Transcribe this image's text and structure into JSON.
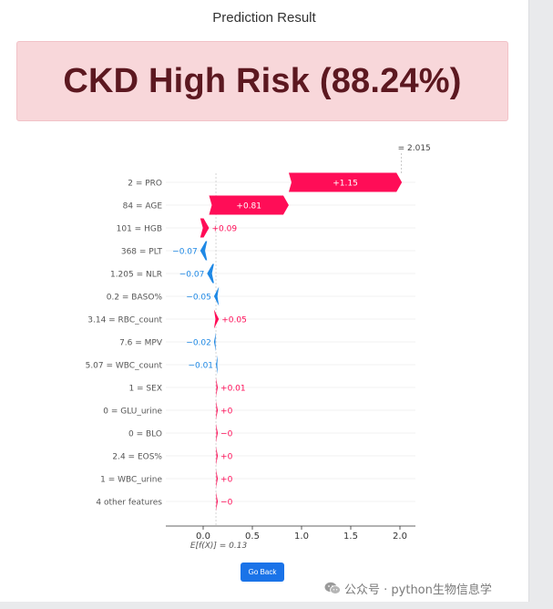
{
  "page": {
    "title": "Prediction Result",
    "result_text": "CKD High Risk (88.24%)",
    "go_back_label": "Go Back",
    "watermark_text": "公众号 · python生物信息学",
    "colors": {
      "result_bg": "#f8d7da",
      "result_text": "#5c1820",
      "positive": "#ff0d57",
      "negative": "#1e88e5",
      "button": "#1a73e8"
    },
    "icons": [
      "wechat-icon"
    ]
  },
  "chart_data": {
    "type": "waterfall",
    "fx_label": "= 2.015",
    "fx_value": 2.015,
    "base_label": "E[f(X)] = 0.13",
    "base_value": 0.13,
    "xlim": [
      -0.4,
      2.15
    ],
    "xticks": [
      "0.0",
      "0.5",
      "1.0",
      "1.5",
      "2.0"
    ],
    "xtick_values": [
      0.0,
      0.5,
      1.0,
      1.5,
      2.0
    ],
    "features": [
      {
        "label": "2 = PRO",
        "value": 1.15,
        "text": "+1.15"
      },
      {
        "label": "84 = AGE",
        "value": 0.81,
        "text": "+0.81"
      },
      {
        "label": "101 = HGB",
        "value": 0.09,
        "text": "+0.09"
      },
      {
        "label": "368 = PLT",
        "value": -0.07,
        "text": "−0.07"
      },
      {
        "label": "1.205 = NLR",
        "value": -0.07,
        "text": "−0.07"
      },
      {
        "label": "0.2 = BASO%",
        "value": -0.05,
        "text": "−0.05"
      },
      {
        "label": "3.14 = RBC_count",
        "value": 0.05,
        "text": "+0.05"
      },
      {
        "label": "7.6 = MPV",
        "value": -0.02,
        "text": "−0.02"
      },
      {
        "label": "5.07 = WBC_count",
        "value": -0.01,
        "text": "−0.01"
      },
      {
        "label": "1 = SEX",
        "value": 0.01,
        "text": "+0.01"
      },
      {
        "label": "0 = GLU_urine",
        "value": 0.0,
        "text": "+0"
      },
      {
        "label": "0 = BLO",
        "value": 0.0,
        "text": "−0"
      },
      {
        "label": "2.4 = EOS%",
        "value": 0.0,
        "text": "+0"
      },
      {
        "label": "1 = WBC_urine",
        "value": 0.0,
        "text": "+0"
      },
      {
        "label": "4 other features",
        "value": 0.0,
        "text": "−0"
      }
    ]
  }
}
